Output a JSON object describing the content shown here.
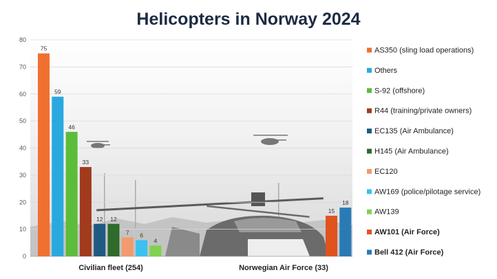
{
  "chart_data": {
    "type": "bar",
    "title": "Helicopters in Norway 2024",
    "xlabel": "",
    "ylabel": "",
    "ylim": [
      0,
      80
    ],
    "yticks": [
      0,
      10,
      20,
      30,
      40,
      50,
      60,
      70,
      80
    ],
    "grid": true,
    "legend_position": "right",
    "categories": [
      "Civilian fleet (254)",
      "Norwegian Air Force (33)"
    ],
    "series": [
      {
        "name": "AS350 (sling load operations)",
        "color": "#f07030",
        "values": [
          75,
          null
        ]
      },
      {
        "name": "Others",
        "color": "#2aa8e0",
        "values": [
          59,
          null
        ]
      },
      {
        "name": "S-92 (offshore)",
        "color": "#5bbd3a",
        "values": [
          46,
          null
        ]
      },
      {
        "name": "R44 (training/private owners)",
        "color": "#a23a1e",
        "values": [
          33,
          null
        ]
      },
      {
        "name": "EC135 (Air Ambulance)",
        "color": "#1e5a82",
        "values": [
          12,
          null
        ]
      },
      {
        "name": "H145 (Air Ambulance)",
        "color": "#2f6b2a",
        "values": [
          12,
          null
        ]
      },
      {
        "name": "EC120",
        "color": "#f39a6e",
        "values": [
          7,
          null
        ]
      },
      {
        "name": "AW169 (police/pilotage service)",
        "color": "#3cc0f0",
        "values": [
          6,
          null
        ]
      },
      {
        "name": "AW139",
        "color": "#7fd24e",
        "values": [
          4,
          null
        ]
      },
      {
        "name": "AW101 (Air Force)",
        "color": "#e0531f",
        "values": [
          null,
          15
        ]
      },
      {
        "name": "Bell 412 (Air Force)",
        "color": "#2a7ab5",
        "values": [
          null,
          18
        ]
      }
    ]
  }
}
